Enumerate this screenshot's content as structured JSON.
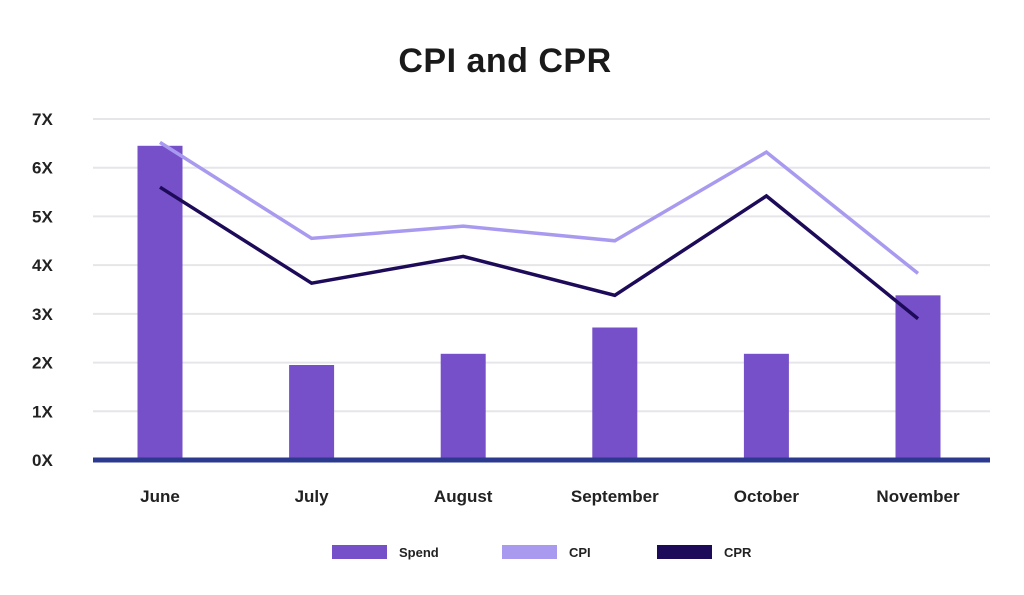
{
  "chart_data": {
    "type": "bar",
    "title": "CPI and CPR",
    "xlabel": "",
    "ylabel": "",
    "categories": [
      "June",
      "July",
      "August",
      "September",
      "October",
      "November"
    ],
    "yticks": [
      "0X",
      "1X",
      "2X",
      "3X",
      "4X",
      "5X",
      "6X",
      "7X"
    ],
    "ylim": [
      0,
      7
    ],
    "grid": true,
    "legend_position": "bottom",
    "series": [
      {
        "name": "Spend",
        "type": "bar",
        "color": "#7650c8",
        "values": [
          6.45,
          1.95,
          2.18,
          2.72,
          2.18,
          3.38
        ]
      },
      {
        "name": "CPI",
        "type": "line",
        "color": "#a99af0",
        "values": [
          6.52,
          4.55,
          4.8,
          4.5,
          6.32,
          3.83
        ]
      },
      {
        "name": "CPR",
        "type": "line",
        "color": "#1d0b5a",
        "values": [
          5.6,
          3.63,
          4.18,
          3.38,
          5.42,
          2.9
        ]
      }
    ],
    "axis_color": "#2b3a8f",
    "grid_color": "#e6e6ea"
  }
}
